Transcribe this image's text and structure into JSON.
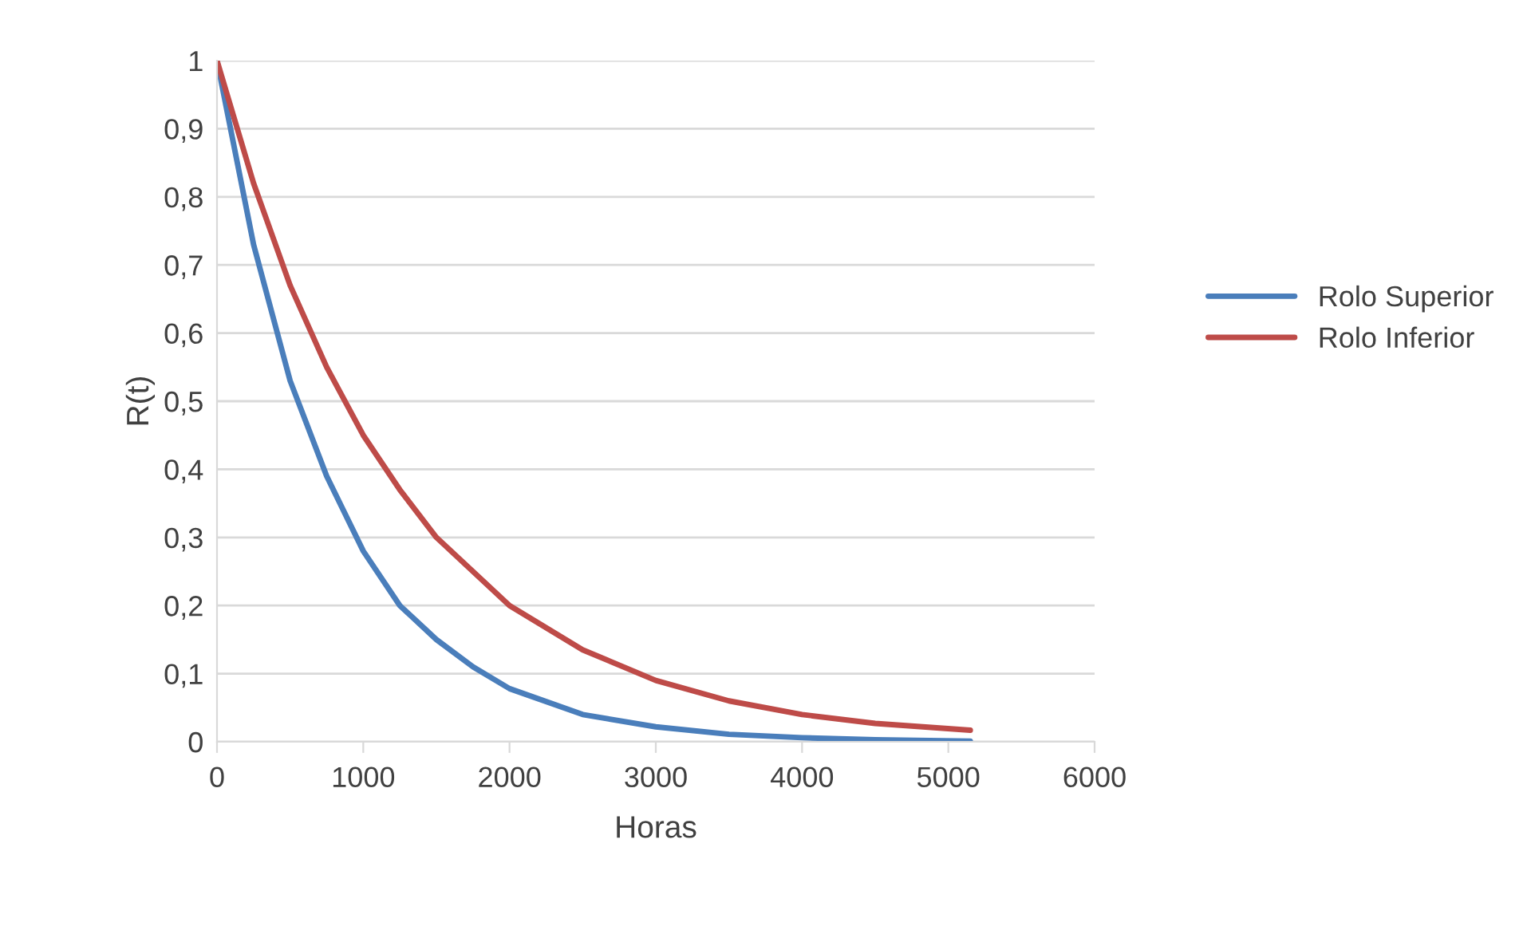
{
  "chart_data": {
    "type": "line",
    "xlabel": "Horas",
    "ylabel": "R(t)",
    "xlim": [
      0,
      6000
    ],
    "xticks": [
      0,
      1000,
      2000,
      3000,
      4000,
      5000,
      6000
    ],
    "ylim": [
      0,
      1
    ],
    "yticks": [
      0,
      {
        "value": 0.1,
        "label": "0,1"
      },
      {
        "value": 0.2,
        "label": "0,2"
      },
      {
        "value": 0.3,
        "label": "0,3"
      },
      {
        "value": 0.4,
        "label": "0,4"
      },
      {
        "value": 0.5,
        "label": "0,5"
      },
      {
        "value": 0.6,
        "label": "0,6"
      },
      {
        "value": 0.7,
        "label": "0,7"
      },
      {
        "value": 0.8,
        "label": "0,8"
      },
      {
        "value": 0.9,
        "label": "0,9"
      },
      1
    ],
    "grid": "y",
    "legend": "right",
    "marker": "none",
    "line_style": "solid",
    "x": [
      0,
      250,
      500,
      750,
      1000,
      1250,
      1500,
      1750,
      2000,
      2500,
      3000,
      3500,
      4000,
      4500,
      5150
    ],
    "series": [
      {
        "name": "Rolo Superior",
        "color": "#4a7ebb",
        "values": [
          1,
          0.73,
          0.53,
          0.39,
          0.28,
          0.2,
          0.15,
          0.11,
          0.078,
          0.04,
          0.022,
          0.011,
          0.006,
          0.003,
          0.001
        ]
      },
      {
        "name": "Rolo Inferior",
        "color": "#be4b48",
        "values": [
          1,
          0.82,
          0.67,
          0.55,
          0.45,
          0.37,
          0.3,
          0.25,
          0.2,
          0.135,
          0.09,
          0.06,
          0.04,
          0.027,
          0.017
        ]
      }
    ]
  }
}
